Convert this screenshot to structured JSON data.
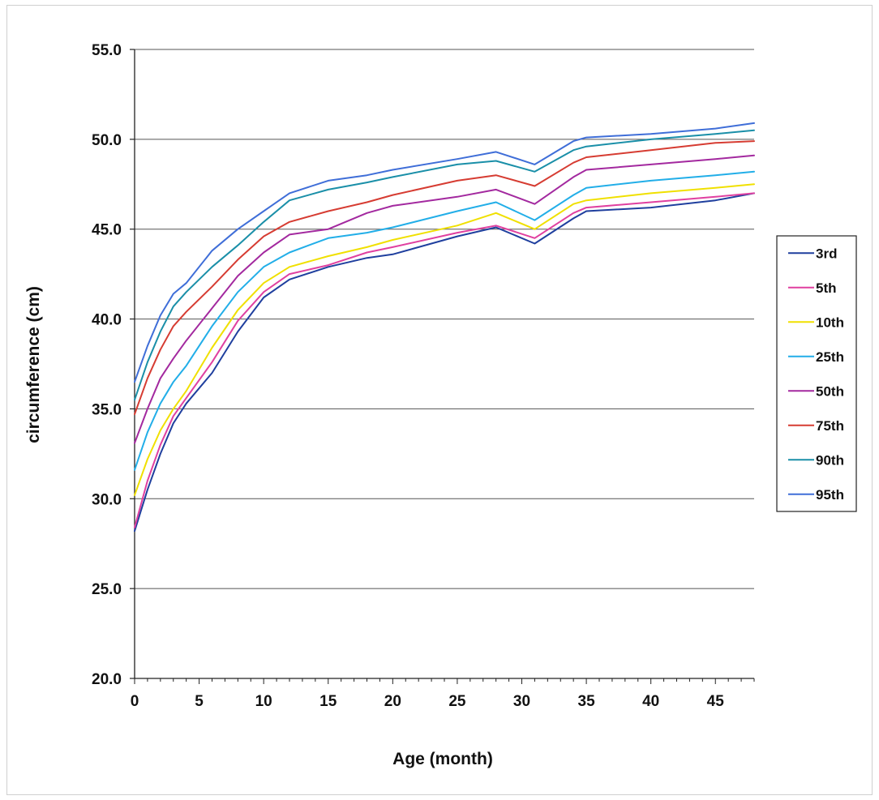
{
  "chart_data": {
    "type": "line",
    "title": "",
    "xlabel": "Age (month)",
    "ylabel": "circumference (cm)",
    "xlim": [
      0,
      48
    ],
    "ylim": [
      20,
      55
    ],
    "xticks": [
      0,
      5,
      10,
      15,
      20,
      25,
      30,
      35,
      40,
      45
    ],
    "xtick_labels": [
      "0",
      "5",
      "10",
      "15",
      "20",
      "25",
      "30",
      "35",
      "40",
      "45"
    ],
    "yticks": [
      20,
      25,
      30,
      35,
      40,
      45,
      50,
      55
    ],
    "ytick_labels": [
      "20.0",
      "25.0",
      "30.0",
      "35.0",
      "40.0",
      "45.0",
      "50.0",
      "55.0"
    ],
    "grid": "horizontal",
    "legend_position": "right",
    "x": [
      0,
      1,
      2,
      3,
      4,
      6,
      8,
      10,
      12,
      15,
      18,
      20,
      25,
      28,
      31,
      34,
      35,
      40,
      45,
      48
    ],
    "series": [
      {
        "name": "3rd",
        "color": "#1f3f9e",
        "values": [
          28.2,
          30.5,
          32.5,
          34.2,
          35.3,
          37.0,
          39.3,
          41.2,
          42.2,
          42.9,
          43.4,
          43.6,
          44.6,
          45.1,
          44.2,
          45.6,
          46.0,
          46.2,
          46.6,
          47.0
        ]
      },
      {
        "name": "5th",
        "color": "#e040a0",
        "values": [
          28.4,
          31.0,
          33.0,
          34.6,
          35.6,
          37.6,
          39.9,
          41.5,
          42.5,
          43.0,
          43.7,
          44.0,
          44.8,
          45.2,
          44.5,
          45.9,
          46.2,
          46.5,
          46.8,
          47.0
        ]
      },
      {
        "name": "10th",
        "color": "#f0e000",
        "values": [
          30.2,
          32.2,
          33.8,
          35.0,
          36.0,
          38.4,
          40.5,
          42.0,
          42.9,
          43.5,
          44.0,
          44.4,
          45.2,
          45.9,
          45.0,
          46.4,
          46.6,
          47.0,
          47.3,
          47.5
        ]
      },
      {
        "name": "25th",
        "color": "#22aee8",
        "values": [
          31.6,
          33.7,
          35.3,
          36.5,
          37.4,
          39.6,
          41.5,
          42.9,
          43.7,
          44.5,
          44.8,
          45.1,
          46.0,
          46.5,
          45.5,
          46.9,
          47.3,
          47.7,
          48.0,
          48.2
        ]
      },
      {
        "name": "50th",
        "color": "#a3299f",
        "values": [
          33.1,
          35.0,
          36.7,
          37.8,
          38.8,
          40.6,
          42.4,
          43.7,
          44.7,
          45.0,
          45.9,
          46.3,
          46.8,
          47.2,
          46.4,
          47.9,
          48.3,
          48.6,
          48.9,
          49.1
        ]
      },
      {
        "name": "75th",
        "color": "#d63c32",
        "values": [
          34.7,
          36.7,
          38.3,
          39.6,
          40.4,
          41.8,
          43.3,
          44.6,
          45.4,
          46.0,
          46.5,
          46.9,
          47.7,
          48.0,
          47.4,
          48.7,
          49.0,
          49.4,
          49.8,
          49.9
        ]
      },
      {
        "name": "90th",
        "color": "#1a8fa8",
        "values": [
          35.5,
          37.6,
          39.3,
          40.7,
          41.5,
          42.9,
          44.1,
          45.4,
          46.6,
          47.2,
          47.6,
          47.9,
          48.6,
          48.8,
          48.2,
          49.4,
          49.6,
          50.0,
          50.3,
          50.5
        ]
      },
      {
        "name": "95th",
        "color": "#3f6ed8",
        "values": [
          36.5,
          38.5,
          40.2,
          41.4,
          42.0,
          43.8,
          45.0,
          46.0,
          47.0,
          47.7,
          48.0,
          48.3,
          48.9,
          49.3,
          48.6,
          49.9,
          50.1,
          50.3,
          50.6,
          50.9
        ]
      }
    ]
  }
}
